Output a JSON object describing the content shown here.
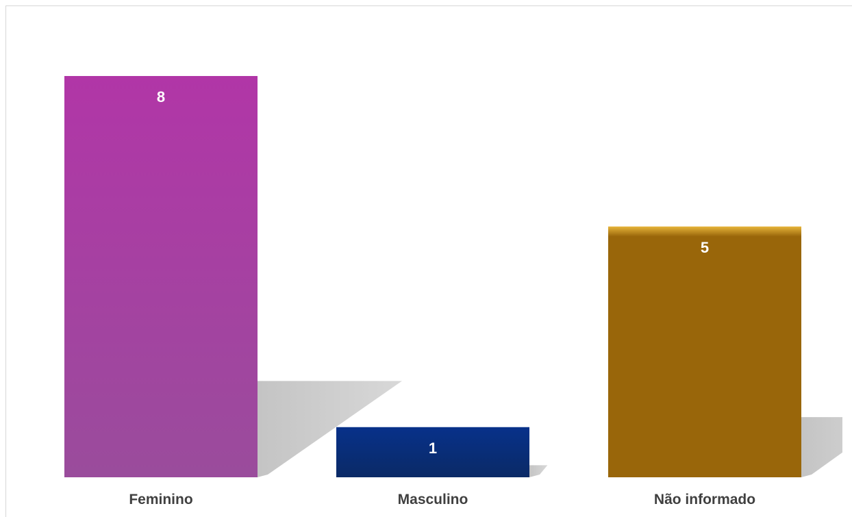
{
  "chart_data": {
    "type": "bar",
    "categories": [
      "Feminino",
      "Masculino",
      "Não informado"
    ],
    "values": [
      8,
      1,
      5
    ],
    "colors": [
      "#a63ca3",
      "#07307f",
      "#99660a"
    ],
    "title": "",
    "xlabel": "",
    "ylabel": "",
    "ylim": [
      0,
      8
    ],
    "grid": false,
    "legend": "none",
    "data_labels": true
  }
}
